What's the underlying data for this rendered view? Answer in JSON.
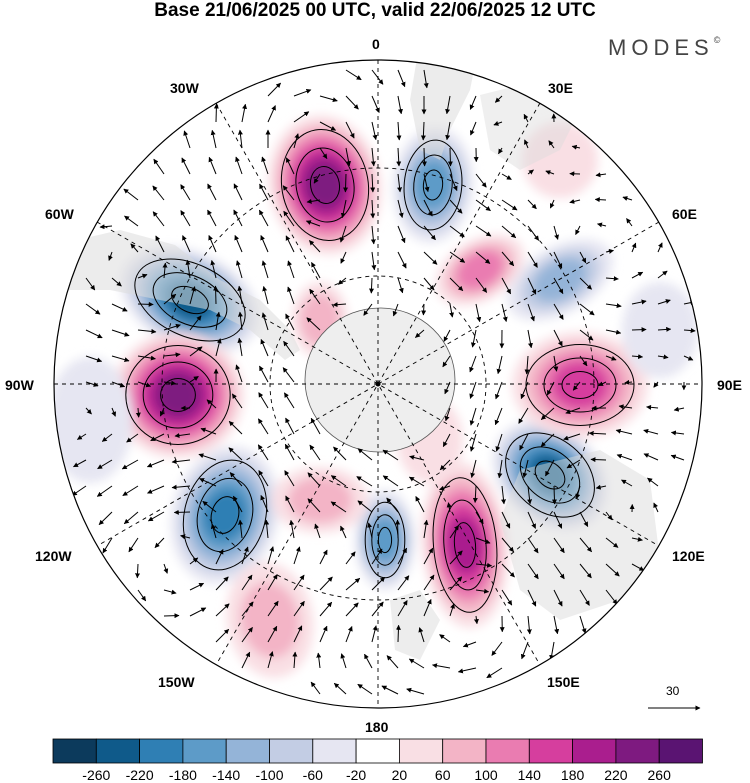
{
  "title": "Base 21/06/2025 00 UTC, valid 22/06/2025 12 UTC",
  "brand": "MODES",
  "brand_mark": "©",
  "lon_labels": {
    "l0": "0",
    "l30e": "30E",
    "l60e": "60E",
    "l90e": "90E",
    "l120e": "120E",
    "l150e": "150E",
    "l180": "180",
    "l150w": "150W",
    "l120w": "120W",
    "l90w": "90W",
    "l60w": "60W",
    "l30w": "30W"
  },
  "reference_vector_label": "30",
  "colorbar": {
    "levels": [
      "-260",
      "-220",
      "-180",
      "-140",
      "-100",
      "-60",
      "-20",
      "20",
      "60",
      "100",
      "140",
      "180",
      "220",
      "260"
    ],
    "colors": [
      "#0c3a5c",
      "#0f5a8a",
      "#2f7fb4",
      "#5d9bc8",
      "#94b4d8",
      "#c3cde4",
      "#e6e6f2",
      "#ffffff",
      "#f9dfe4",
      "#f3b4c6",
      "#ea7cb1",
      "#d63e9e",
      "#aa1e8e",
      "#7e1a80",
      "#5a1472"
    ]
  },
  "colors": {
    "land": "#dcdcdc",
    "antarctica": "#eeeeee",
    "grid": "#000000"
  }
}
